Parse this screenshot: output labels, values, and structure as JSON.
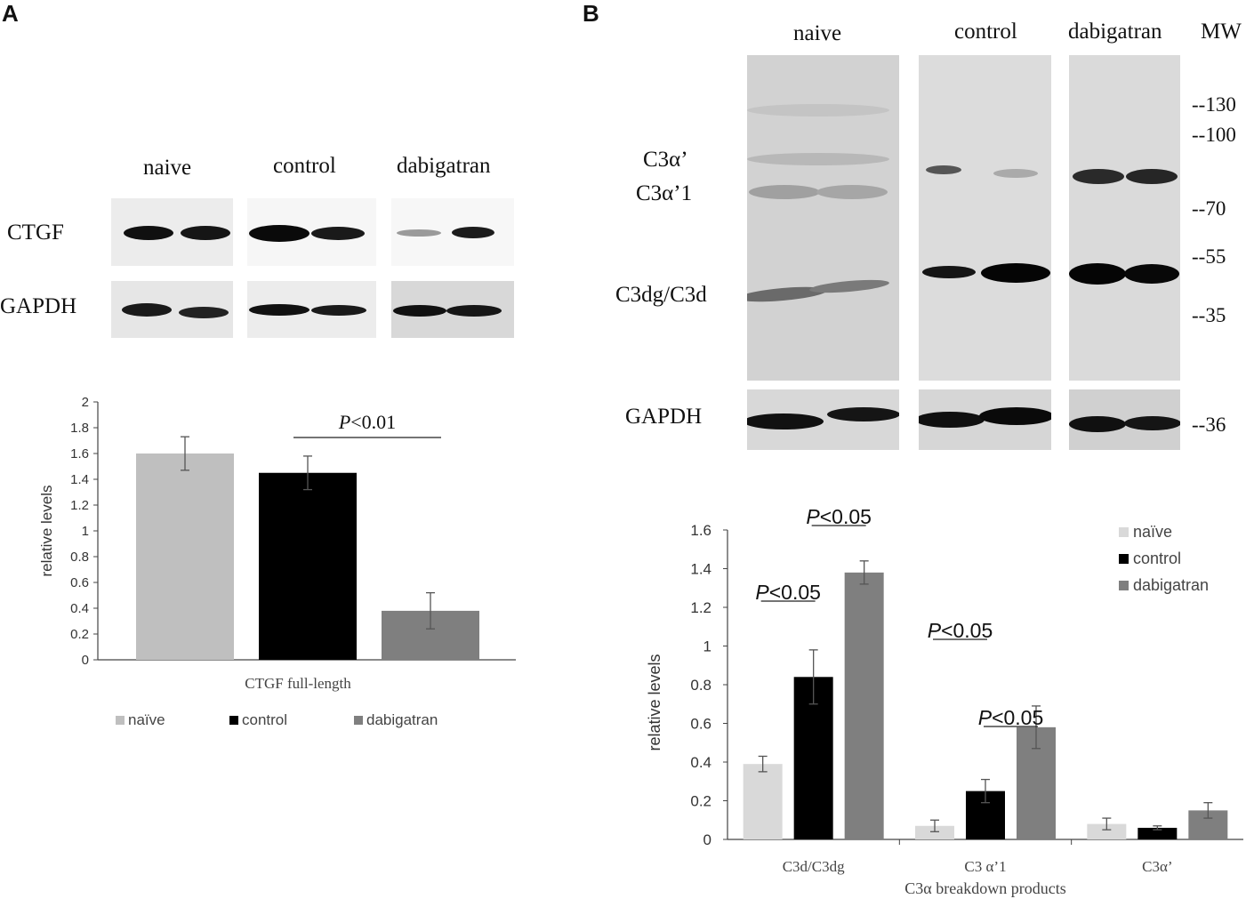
{
  "panel_a": {
    "letter": "A",
    "lanes": [
      "naive",
      "control",
      "dabigatran"
    ],
    "rows": [
      "CTGF",
      "GAPDH"
    ]
  },
  "panel_b": {
    "letter": "B",
    "lanes": [
      "naive",
      "control",
      "dabigatran"
    ],
    "mw_header": "MW",
    "mw_markers": [
      "--130",
      "--100",
      "--70",
      "--55",
      "--35",
      "--36"
    ],
    "band_labels": [
      "C3α’",
      "C3α’1",
      "C3dg/C3d",
      "GAPDH"
    ]
  },
  "colors": {
    "naive": "#bfbfbf",
    "control": "#000000",
    "dabigatran": "#7f7f7f",
    "naive_b": "#d9d9d9"
  },
  "chart_data": [
    {
      "type": "bar",
      "categories": [
        "CTGF full-length"
      ],
      "series": [
        {
          "name": "naïve",
          "values": [
            1.6
          ],
          "error": [
            0.13
          ]
        },
        {
          "name": "control",
          "values": [
            1.45
          ],
          "error": [
            0.13
          ]
        },
        {
          "name": "dabigatran",
          "values": [
            0.38
          ],
          "error": [
            0.14
          ]
        }
      ],
      "xlabel": "CTGF full-length",
      "ylabel": "relative levels",
      "ylim": [
        0,
        2
      ],
      "yticks": [
        "0",
        "0.2",
        "0.4",
        "0.6",
        "0.8",
        "1",
        "1.2",
        "1.4",
        "1.6",
        "1.8",
        "2"
      ],
      "legend": "bottom",
      "annotations": [
        {
          "text": "P<0.01",
          "italic_prefix": "P",
          "rest": "<0.01",
          "between": [
            "control",
            "dabigatran"
          ]
        }
      ]
    },
    {
      "type": "bar",
      "categories": [
        "C3d/C3dg",
        "C3 α’1",
        "C3α’"
      ],
      "series": [
        {
          "name": "naïve",
          "values": [
            0.39,
            0.07,
            0.08
          ],
          "error": [
            0.04,
            0.03,
            0.03
          ]
        },
        {
          "name": "control",
          "values": [
            0.84,
            0.25,
            0.06
          ],
          "error": [
            0.14,
            0.06,
            0.01
          ]
        },
        {
          "name": "dabigatran",
          "values": [
            1.38,
            0.58,
            0.15
          ],
          "error": [
            0.06,
            0.11,
            0.04
          ]
        }
      ],
      "xlabel": "C3α breakdown products",
      "ylabel": "relative levels",
      "ylim": [
        0,
        1.6
      ],
      "yticks": [
        "0",
        "0.2",
        "0.4",
        "0.6",
        "0.8",
        "1",
        "1.2",
        "1.4",
        "1.6"
      ],
      "legend": "top-right",
      "annotations": [
        {
          "italic_prefix": "P",
          "rest": "<0.05",
          "category": 0,
          "between": [
            "naïve",
            "control"
          ]
        },
        {
          "italic_prefix": "P",
          "rest": "<0.05",
          "category": 0,
          "between": [
            "control",
            "dabigatran"
          ]
        },
        {
          "italic_prefix": "P",
          "rest": "<0.05",
          "category": 1,
          "between": [
            "naïve",
            "control"
          ]
        },
        {
          "italic_prefix": "P",
          "rest": "<0.05",
          "category": 1,
          "between": [
            "control",
            "dabigatran"
          ]
        }
      ]
    }
  ]
}
